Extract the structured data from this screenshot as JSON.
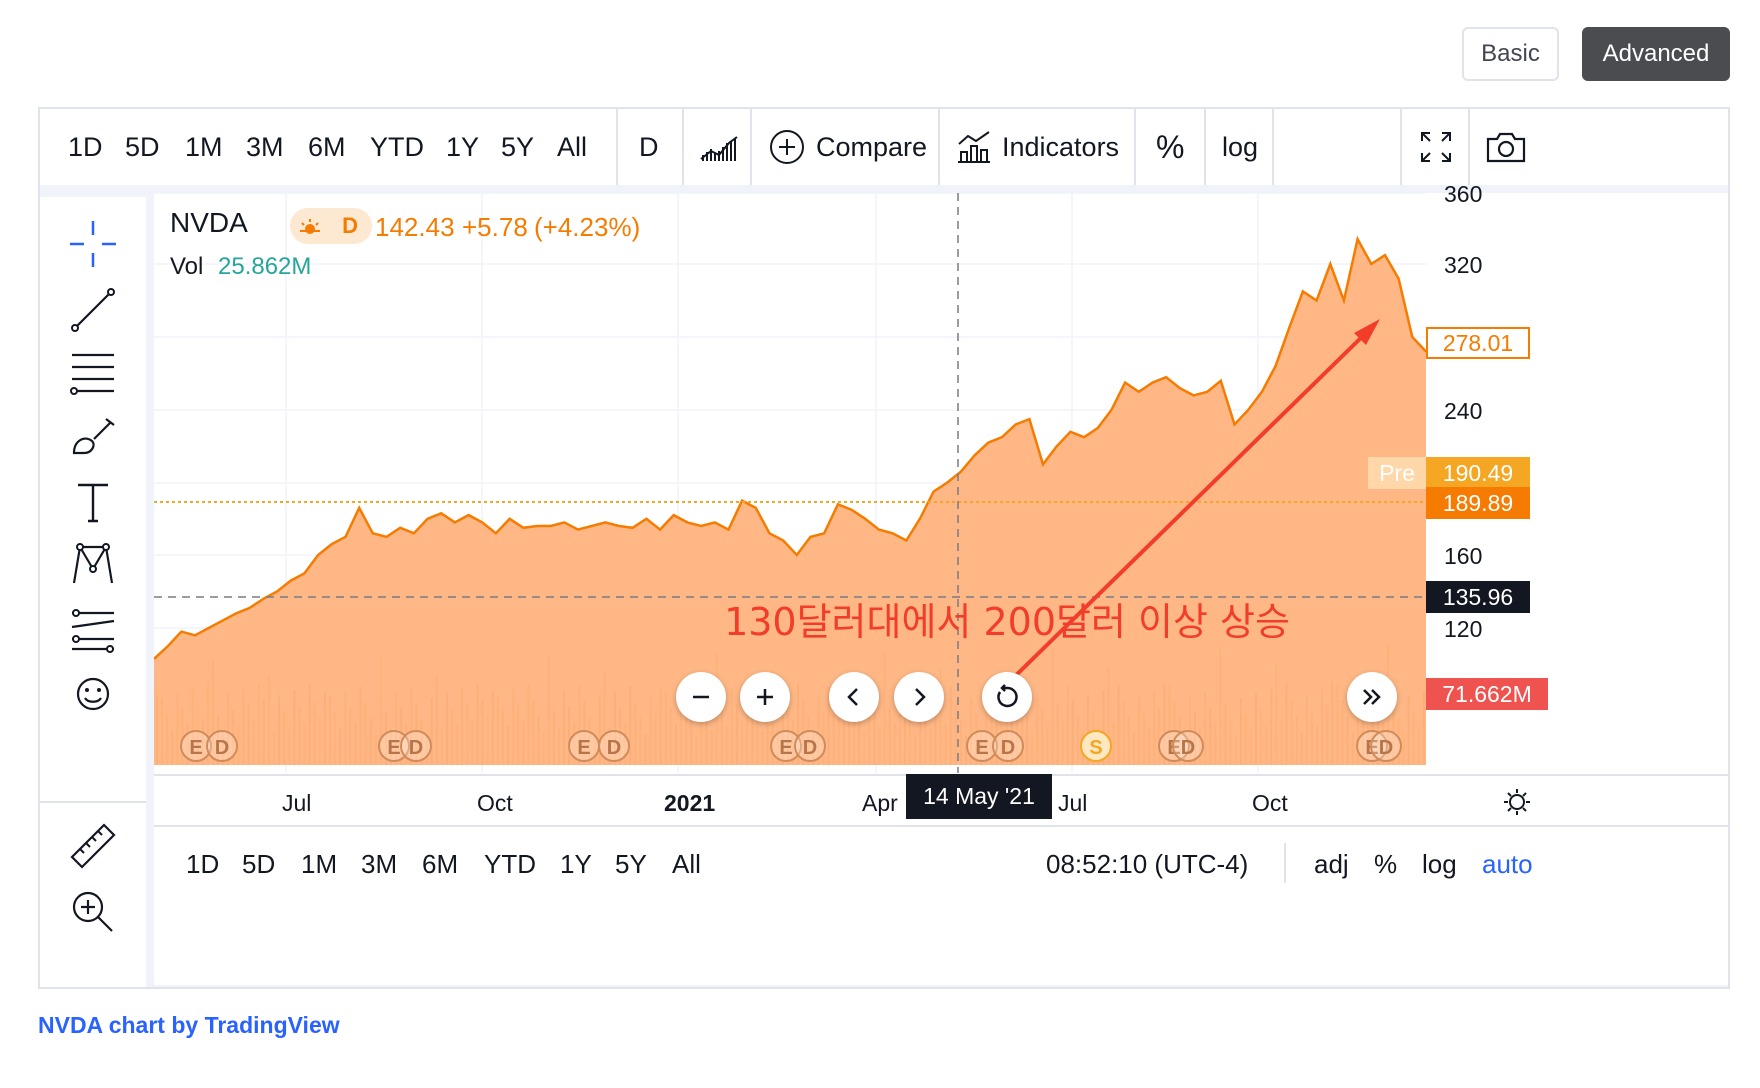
{
  "mode_toggle": {
    "basic": "Basic",
    "advanced": "Advanced"
  },
  "top_toolbar": {
    "ranges": [
      "1D",
      "5D",
      "1M",
      "3M",
      "6M",
      "YTD",
      "1Y",
      "5Y",
      "All"
    ],
    "interval": "D",
    "compare": "Compare",
    "indicators": "Indicators",
    "percent": "%",
    "log": "log"
  },
  "legend": {
    "symbol": "NVDA",
    "interval_badge": "D",
    "price": "142.43",
    "change": "+5.78",
    "change_pct": "(+4.23%)",
    "vol_label": "Vol",
    "vol_value": "25.862M"
  },
  "price_tags": {
    "last": "278.01",
    "pre_label": "Pre",
    "pre": "190.49",
    "close_line": "189.89",
    "crosshair": "135.96",
    "volume": "71.662M"
  },
  "crosshair_date": "14 May '21",
  "annotation": "130달러대에서 200달러 이상 상승",
  "bottom_bar": {
    "ranges": [
      "1D",
      "5D",
      "1M",
      "3M",
      "6M",
      "YTD",
      "1Y",
      "5Y",
      "All"
    ],
    "time": "08:52:10 (UTC-4)",
    "adj": "adj",
    "percent": "%",
    "log": "log",
    "auto": "auto"
  },
  "footer": "NVDA chart by TradingView",
  "colors": {
    "area_line": "#f57c00",
    "area_fill": "#ffab70",
    "arrow": "#f23d2a",
    "accent": "#2962ff",
    "vol_tag": "#ef5350"
  },
  "chart_data": {
    "type": "area",
    "symbol": "NVDA",
    "ylim": [
      50,
      370
    ],
    "y_ticks": [
      120,
      160,
      240,
      320,
      360
    ],
    "x_ticks": [
      "Jul",
      "Oct",
      "2021",
      "Apr",
      "Jul",
      "Oct"
    ],
    "series": [
      {
        "values": [
          103,
          110,
          118,
          116,
          120,
          124,
          128,
          131,
          136,
          140,
          146,
          150,
          160,
          166,
          170,
          186,
          172,
          170,
          175,
          172,
          180,
          183,
          178,
          182,
          178,
          172,
          180,
          175,
          176,
          176,
          178,
          174,
          176,
          178,
          176,
          175,
          180,
          174,
          182,
          178,
          176,
          178,
          174,
          190,
          186,
          172,
          168,
          160,
          170,
          172,
          188,
          185,
          180,
          174,
          172,
          168,
          180,
          195,
          200,
          206,
          215,
          222,
          225,
          232,
          235,
          210,
          220,
          228,
          225,
          230,
          240,
          255,
          250,
          255,
          258,
          252,
          248,
          250,
          256,
          232,
          240,
          250,
          264,
          285,
          305,
          300,
          320,
          300,
          334,
          320,
          325,
          312,
          280,
          272
        ],
        "x_start": "2020-05",
        "x_end": "2021-11"
      }
    ],
    "events": [
      "E",
      "D",
      "E",
      "D",
      "E",
      "D",
      "E",
      "D",
      "E",
      "D",
      "S",
      "E",
      "D",
      "E",
      "D"
    ]
  }
}
